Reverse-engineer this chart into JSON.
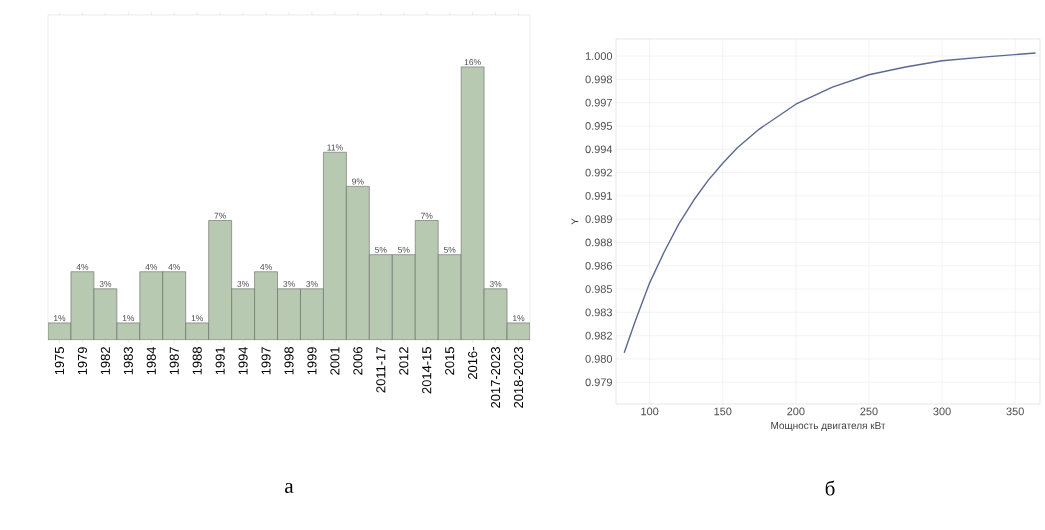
{
  "chart_data": [
    {
      "type": "bar",
      "categories": [
        "1975",
        "1979",
        "1982",
        "1983",
        "1984",
        "1987",
        "1988",
        "1991",
        "1994",
        "1997",
        "1998",
        "1999",
        "2001",
        "2006",
        "2011-17",
        "2012",
        "2014-15",
        "2015",
        "2016-",
        "2017-2023",
        "2018-2023"
      ],
      "values": [
        1,
        4,
        3,
        1,
        4,
        4,
        1,
        7,
        3,
        4,
        3,
        3,
        11,
        9,
        5,
        5,
        7,
        5,
        16,
        3,
        1
      ],
      "value_labels": [
        "1%",
        "4%",
        "3%",
        "1%",
        "4%",
        "4%",
        "1%",
        "7%",
        "3%",
        "4%",
        "3%",
        "3%",
        "11%",
        "9%",
        "5%",
        "5%",
        "7%",
        "5%",
        "16%",
        "3%",
        "1%"
      ],
      "color": "#b7c9b1",
      "annotations": [
        "а"
      ]
    },
    {
      "type": "line",
      "xlabel": "Мощность двигателя кВт",
      "ylabel": "Y",
      "color": "#5b6894",
      "grid": true,
      "x": [
        82.6,
        90,
        100,
        110,
        120,
        130,
        140,
        150,
        160,
        175,
        200,
        225,
        250,
        275,
        300,
        330,
        364
      ],
      "values": [
        0.9809,
        0.9829,
        0.9854,
        0.9874,
        0.9892,
        0.9907,
        0.992,
        0.9931,
        0.9941,
        0.9953,
        0.9969,
        0.998,
        0.9988,
        0.9993,
        0.9997,
        0.99995,
        1.0002
      ],
      "xlim": [
        77,
        367
      ],
      "ylim": [
        0.9776,
        1.0011
      ],
      "xticks": [
        100,
        150,
        200,
        250,
        300,
        350
      ],
      "yticks": [
        {
          "value": 0.979,
          "label": "0.979"
        },
        {
          "value": 0.9805,
          "label": "0.980"
        },
        {
          "value": 0.982,
          "label": "0.982"
        },
        {
          "value": 0.9835,
          "label": "0.983"
        },
        {
          "value": 0.985,
          "label": "0.985"
        },
        {
          "value": 0.9865,
          "label": "0.986"
        },
        {
          "value": 0.988,
          "label": "0.988"
        },
        {
          "value": 0.9895,
          "label": "0.989"
        },
        {
          "value": 0.991,
          "label": "0.991"
        },
        {
          "value": 0.9925,
          "label": "0.992"
        },
        {
          "value": 0.994,
          "label": "0.994"
        },
        {
          "value": 0.9955,
          "label": "0.995"
        },
        {
          "value": 0.997,
          "label": "0.997"
        },
        {
          "value": 0.9985,
          "label": "0.998"
        },
        {
          "value": 1.0,
          "label": "1.000"
        }
      ],
      "annotations": [
        "б"
      ]
    }
  ]
}
